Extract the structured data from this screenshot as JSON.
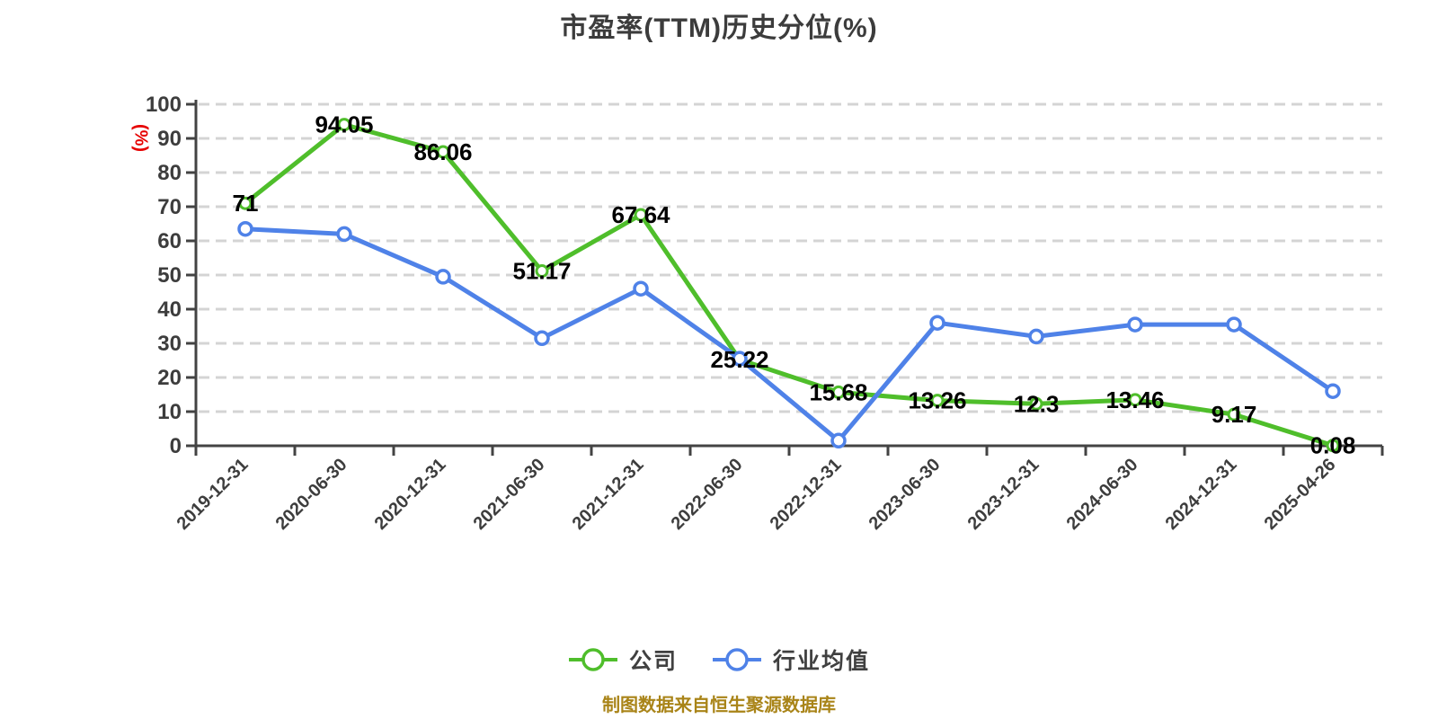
{
  "page": {
    "background": "#ffffff"
  },
  "chart_data": {
    "type": "line",
    "title": "市盈率(TTM)历史分位(%)",
    "y_axis": {
      "unit": "(%)",
      "unit_color": "#e60000",
      "min": 0,
      "max": 100,
      "tick_step": 10,
      "label_color": "#3d3d3d"
    },
    "x_axis": {
      "categories": [
        "2019-12-31",
        "2020-06-30",
        "2020-12-31",
        "2021-06-30",
        "2021-12-31",
        "2022-06-30",
        "2022-12-31",
        "2023-06-30",
        "2023-12-31",
        "2024-06-30",
        "2024-12-31",
        "2025-04-26"
      ],
      "label_color": "#3d3d3d",
      "label_rotation_deg": -45
    },
    "grid": {
      "horizontal_dashed": true,
      "color": "#d4d4d4"
    },
    "axis_color": "#434343",
    "data_label_color": "#000000",
    "series": [
      {
        "name": "公司",
        "color": "#4fbe2b",
        "marker": "circle-white-fill",
        "values": [
          71,
          94.05,
          86.06,
          51.17,
          67.64,
          25.22,
          15.68,
          13.26,
          12.3,
          13.46,
          9.17,
          0.08
        ],
        "data_labels": [
          "71",
          "94.05",
          "86.06",
          "51.17",
          "67.64",
          "25.22",
          "15.68",
          "13.26",
          "12.3",
          "13.46",
          "9.17",
          "0.08"
        ]
      },
      {
        "name": "行业均值",
        "color": "#4f82e8",
        "marker": "circle-white-fill",
        "values": [
          63.5,
          62,
          49.5,
          31.5,
          46,
          25.5,
          1.5,
          36,
          32,
          35.5,
          35.5,
          16
        ],
        "data_labels": []
      }
    ],
    "legend": {
      "position": "bottom-center"
    },
    "footer": {
      "attribution": "制图数据来自恒生聚源数据库",
      "color": "#a98418"
    }
  }
}
